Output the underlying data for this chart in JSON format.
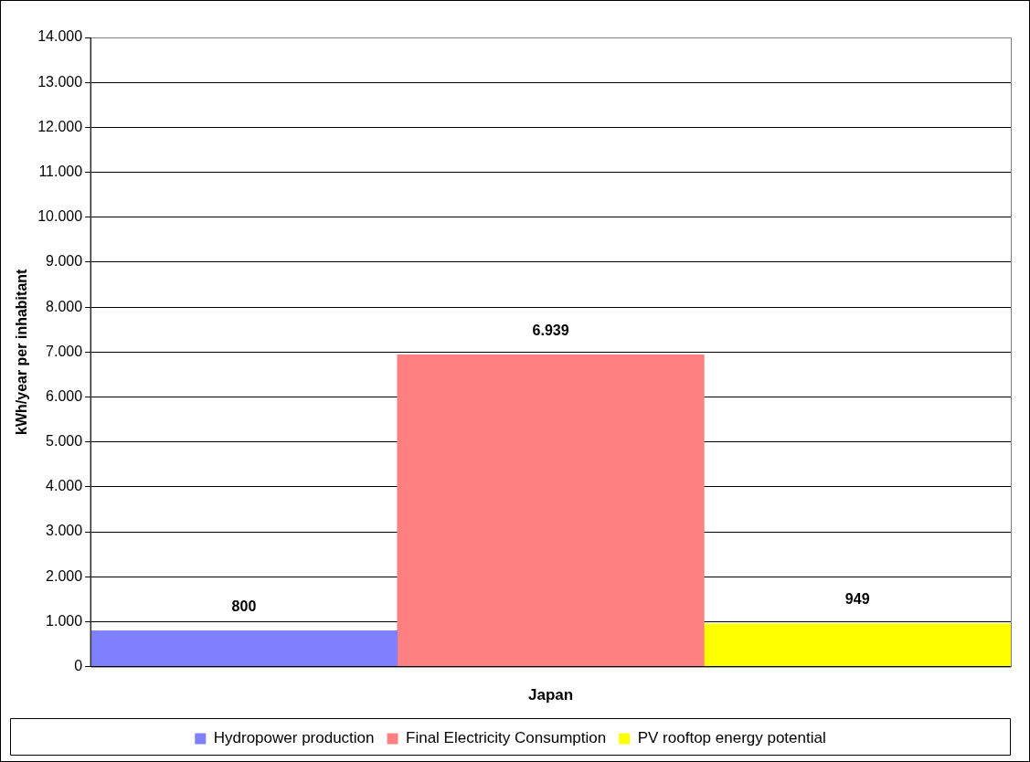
{
  "chart_data": {
    "type": "bar",
    "ylabel": "kWh/year per inhabitant",
    "categories": [
      "Japan"
    ],
    "series": [
      {
        "name": "Hydropower production",
        "color": "#8080ff",
        "values": [
          800
        ],
        "value_labels": [
          "800"
        ]
      },
      {
        "name": "Final Electricity Consumption",
        "color": "#ff8080",
        "values": [
          6939
        ],
        "value_labels": [
          "6.939"
        ]
      },
      {
        "name": "PV rooftop energy potential",
        "color": "#ffff00",
        "values": [
          949
        ],
        "value_labels": [
          "949"
        ]
      }
    ],
    "ylim": [
      0,
      14000
    ],
    "yticks": [
      {
        "value": 0,
        "label": "0"
      },
      {
        "value": 1000,
        "label": "1.000"
      },
      {
        "value": 2000,
        "label": "2.000"
      },
      {
        "value": 3000,
        "label": "3.000"
      },
      {
        "value": 4000,
        "label": "4.000"
      },
      {
        "value": 5000,
        "label": "5.000"
      },
      {
        "value": 6000,
        "label": "6.000"
      },
      {
        "value": 7000,
        "label": "7.000"
      },
      {
        "value": 8000,
        "label": "8.000"
      },
      {
        "value": 9000,
        "label": "9.000"
      },
      {
        "value": 10000,
        "label": "10.000"
      },
      {
        "value": 11000,
        "label": "11.000"
      },
      {
        "value": 12000,
        "label": "12.000"
      },
      {
        "value": 13000,
        "label": "13.000"
      },
      {
        "value": 14000,
        "label": "14.000"
      }
    ],
    "grid": "y",
    "legend": "bottom"
  }
}
